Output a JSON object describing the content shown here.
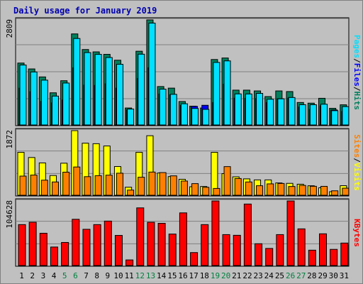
{
  "title": "Daily usage for January 2019",
  "colors": {
    "background": "#c0c0c0",
    "title": "#0000b0",
    "hits": "#00805c",
    "files": "#0000ff",
    "pages": "#00e0ff",
    "visits": "#ffff00",
    "sites": "#ff8000",
    "kbytes": "#ff0000",
    "weekday_label": "#000000",
    "weekend_label": "#008040"
  },
  "chart_data": [
    {
      "type": "bar",
      "name": "hits-files-pages",
      "categories": [
        "1",
        "2",
        "3",
        "4",
        "5",
        "6",
        "7",
        "8",
        "9",
        "10",
        "11",
        "12",
        "13",
        "14",
        "15",
        "16",
        "17",
        "18",
        "19",
        "20",
        "21",
        "22",
        "23",
        "24",
        "25",
        "26",
        "27",
        "28",
        "29",
        "30",
        "31"
      ],
      "weekend_days": [
        "5",
        "6",
        "12",
        "13",
        "19",
        "20",
        "26",
        "27"
      ],
      "max_label": "2809",
      "ylim": [
        0,
        2809
      ],
      "right_label": [
        "Pages",
        "/",
        "Files",
        "/",
        "Hits"
      ],
      "series": [
        {
          "name": "Hits",
          "color": "#00805c",
          "values": [
            1655,
            1498,
            1284,
            860,
            1183,
            2434,
            2017,
            1954,
            1888,
            1731,
            454,
            1971,
            2809,
            1027,
            985,
            627,
            503,
            454,
            1750,
            1790,
            931,
            931,
            910,
            759,
            910,
            893,
            601,
            583,
            713,
            445,
            539
          ]
        },
        {
          "name": "Files",
          "color": "#0000ff",
          "values": [
            984,
            891,
            630,
            592,
            667,
            1530,
            1064,
            1059,
            1101,
            985,
            406,
            1245,
            1530,
            828,
            805,
            521,
            497,
            526,
            599,
            1092,
            716,
            713,
            706,
            598,
            701,
            716,
            481,
            416,
            509,
            402,
            361
          ]
        },
        {
          "name": "Pages",
          "color": "#00e0ff",
          "values": [
            1602,
            1417,
            1198,
            772,
            1121,
            2312,
            1935,
            1887,
            1803,
            1622,
            425,
            1892,
            2723,
            958,
            819,
            567,
            442,
            417,
            1672,
            1713,
            831,
            829,
            844,
            688,
            699,
            734,
            542,
            541,
            555,
            382,
            491
          ]
        }
      ]
    },
    {
      "type": "bar",
      "name": "visits-sites",
      "categories": [
        "1",
        "2",
        "3",
        "4",
        "5",
        "6",
        "7",
        "8",
        "9",
        "10",
        "11",
        "12",
        "13",
        "14",
        "15",
        "16",
        "17",
        "18",
        "19",
        "20",
        "21",
        "22",
        "23",
        "24",
        "25",
        "26",
        "27",
        "28",
        "29",
        "30",
        "31"
      ],
      "max_label": "1872",
      "ylim": [
        0,
        1872
      ],
      "right_label": [
        "Sites",
        "/",
        "Visits"
      ],
      "series": [
        {
          "name": "Visits",
          "color": "#ffff00",
          "values": [
            1244,
            1094,
            937,
            572,
            929,
            1872,
            1509,
            1494,
            1428,
            833,
            233,
            1245,
            1725,
            645,
            541,
            462,
            247,
            254,
            1244,
            627,
            534,
            475,
            445,
            445,
            357,
            345,
            320,
            275,
            217,
            103,
            277
          ]
        },
        {
          "name": "Sites",
          "color": "#ff8000",
          "values": [
            555,
            585,
            437,
            385,
            669,
            819,
            539,
            568,
            582,
            639,
            150,
            522,
            672,
            657,
            562,
            412,
            337,
            230,
            197,
            830,
            485,
            385,
            276,
            330,
            342,
            254,
            285,
            260,
            258,
            129,
            205
          ]
        }
      ]
    },
    {
      "type": "bar",
      "name": "kbytes",
      "categories": [
        "1",
        "2",
        "3",
        "4",
        "5",
        "6",
        "7",
        "8",
        "9",
        "10",
        "11",
        "12",
        "13",
        "14",
        "15",
        "16",
        "17",
        "18",
        "19",
        "20",
        "21",
        "22",
        "23",
        "24",
        "25",
        "26",
        "27",
        "28",
        "29",
        "30",
        "31"
      ],
      "max_label": "104628",
      "ylim": [
        0,
        104628
      ],
      "right_label": [
        "KBytes"
      ],
      "series": [
        {
          "name": "KBytes",
          "color": "#ff0000",
          "values": [
            66300,
            70100,
            52300,
            30000,
            37400,
            74900,
            58700,
            66300,
            72000,
            48800,
            9100,
            93400,
            70100,
            68400,
            51000,
            85300,
            21000,
            66300,
            104600,
            50100,
            49000,
            99600,
            35300,
            27700,
            50100,
            104600,
            59400,
            24900,
            51400,
            26200,
            36400
          ]
        }
      ]
    }
  ]
}
